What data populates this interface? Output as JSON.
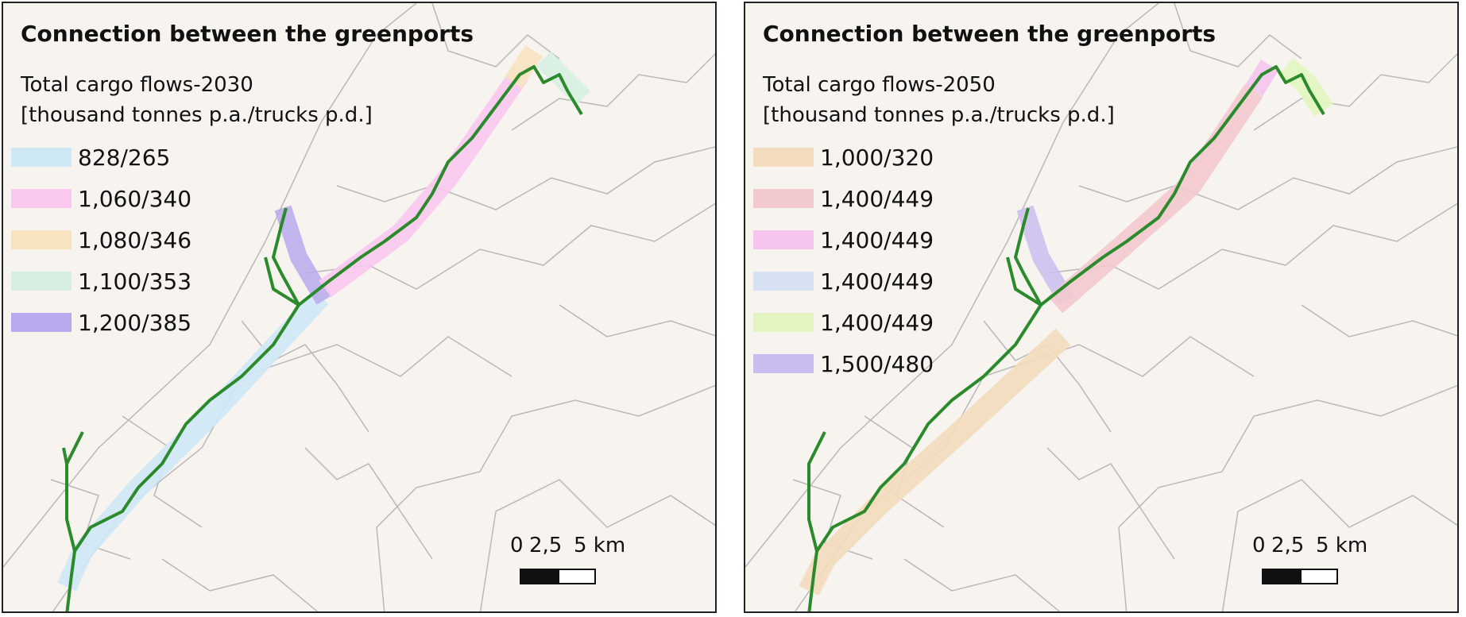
{
  "panels": [
    {
      "title": "Connection between the greenports",
      "legend_title_line1": "Total cargo flows-2030",
      "legend_title_line2": "[thousand tonnes p.a./trucks p.d.]",
      "legend": [
        {
          "label": "828/265",
          "color": "#cfe8f6"
        },
        {
          "label": "1,060/340",
          "color": "#f9c8ee"
        },
        {
          "label": "1,080/346",
          "color": "#f7e3c0"
        },
        {
          "label": "1,100/353",
          "color": "#d6efe0"
        },
        {
          "label": "1,200/385",
          "color": "#b9a9ec"
        }
      ],
      "scale": {
        "l0": "0",
        "l1": "2,5",
        "l2": "5 km"
      }
    },
    {
      "title": "Connection between the greenports",
      "legend_title_line1": "Total cargo flows-2050",
      "legend_title_line2": "[thousand tonnes p.a./trucks p.d.]",
      "legend": [
        {
          "label": "1,000/320",
          "color": "#f3dcbd"
        },
        {
          "label": "1,400/449",
          "color": "#f2c9cd"
        },
        {
          "label": "1,400/449",
          "color": "#f5c5ee"
        },
        {
          "label": "1,400/449",
          "color": "#d6e1f4"
        },
        {
          "label": "1,400/449",
          "color": "#e2f5c0"
        },
        {
          "label": "1,500/480",
          "color": "#c9bdf0"
        }
      ],
      "scale": {
        "l0": "0",
        "l1": "2,5",
        "l2": "5 km"
      }
    }
  ],
  "colors": {
    "route": "#2b8a2b",
    "boundary": "#b8b8b8",
    "background": "#f7f4f0"
  }
}
